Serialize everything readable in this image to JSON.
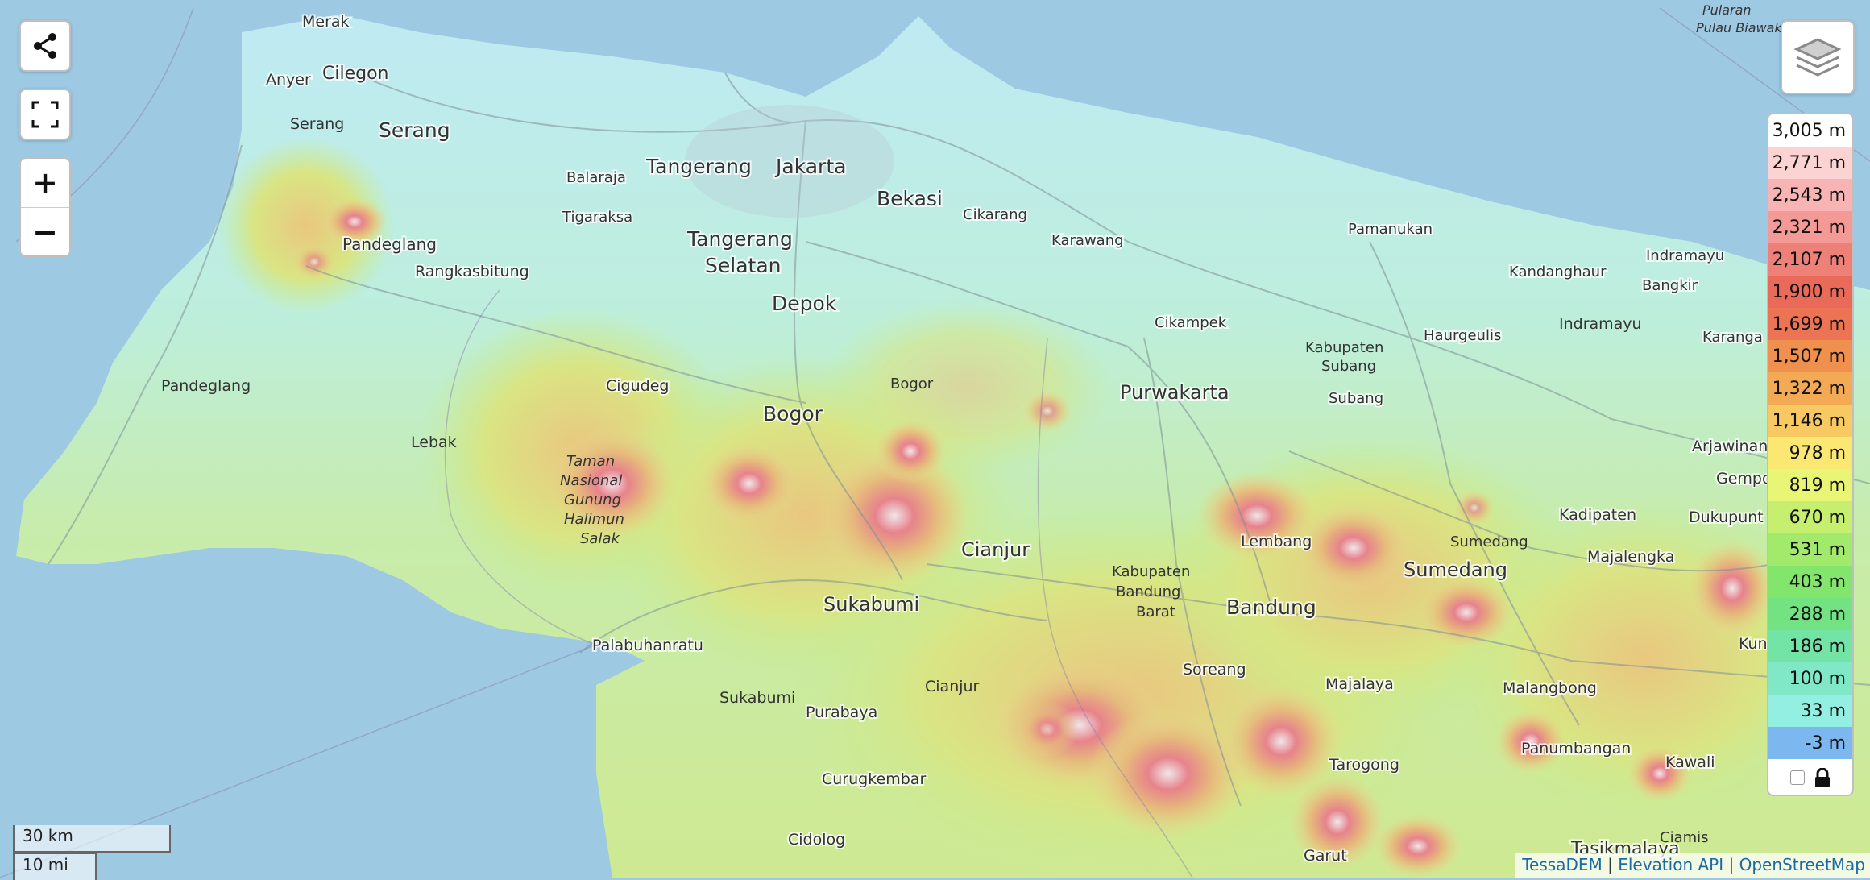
{
  "map": {
    "places": [
      {
        "name": "Merak",
        "size": "small"
      },
      {
        "name": "Cilegon",
        "size": "medium"
      },
      {
        "name": "Anyer",
        "size": "small"
      },
      {
        "name": "Serang",
        "size": "large"
      },
      {
        "name": "Serang",
        "size": "region"
      },
      {
        "name": "Pandeglang",
        "size": "medium"
      },
      {
        "name": "Rangkasbitung",
        "size": "medium"
      },
      {
        "name": "Pandeglang",
        "size": "region"
      },
      {
        "name": "Lebak",
        "size": "region"
      },
      {
        "name": "Balaraja",
        "size": "small"
      },
      {
        "name": "Tigaraksa",
        "size": "small"
      },
      {
        "name": "Tangerang",
        "size": "large"
      },
      {
        "name": "Jakarta",
        "size": "large"
      },
      {
        "name": "Bekasi",
        "size": "large"
      },
      {
        "name": "Tangerang",
        "size": "large"
      },
      {
        "name": "Selatan",
        "size": "large"
      },
      {
        "name": "Depok",
        "size": "large"
      },
      {
        "name": "Cikarang",
        "size": "small"
      },
      {
        "name": "Karawang",
        "size": "small"
      },
      {
        "name": "Pamanukan",
        "size": "small"
      },
      {
        "name": "Kandanghaur",
        "size": "small"
      },
      {
        "name": "Indramayu",
        "size": "small"
      },
      {
        "name": "Bangkir",
        "size": "small"
      },
      {
        "name": "Indramayu",
        "size": "region"
      },
      {
        "name": "Karanga",
        "size": "small"
      },
      {
        "name": "Haurgeulis",
        "size": "small"
      },
      {
        "name": "Cikampek",
        "size": "small"
      },
      {
        "name": "Kabupaten",
        "size": "region"
      },
      {
        "name": "Subang",
        "size": "region"
      },
      {
        "name": "Subang",
        "size": "small"
      },
      {
        "name": "Purwakarta",
        "size": "large"
      },
      {
        "name": "Cigudeg",
        "size": "small"
      },
      {
        "name": "Bogor",
        "size": "region"
      },
      {
        "name": "Bogor",
        "size": "large"
      },
      {
        "name": "Taman",
        "size": "park"
      },
      {
        "name": "Nasional",
        "size": "park"
      },
      {
        "name": "Gunung",
        "size": "park"
      },
      {
        "name": "Halimun",
        "size": "park"
      },
      {
        "name": "Salak",
        "size": "park"
      },
      {
        "name": "Cianjur",
        "size": "large"
      },
      {
        "name": "Sukabumi",
        "size": "large"
      },
      {
        "name": "Palabuhanratu",
        "size": "small"
      },
      {
        "name": "Lembang",
        "size": "small"
      },
      {
        "name": "Kabupaten",
        "size": "region"
      },
      {
        "name": "Bandung",
        "size": "region"
      },
      {
        "name": "Barat",
        "size": "region"
      },
      {
        "name": "Bandung",
        "size": "large"
      },
      {
        "name": "Sumedang",
        "size": "large"
      },
      {
        "name": "Sumedang",
        "size": "region"
      },
      {
        "name": "Kadipaten",
        "size": "small"
      },
      {
        "name": "Dukupunt",
        "size": "small"
      },
      {
        "name": "Majalengka",
        "size": "small"
      },
      {
        "name": "Arjawinang",
        "size": "small"
      },
      {
        "name": "Gempo",
        "size": "small"
      },
      {
        "name": "Kun",
        "size": "small"
      },
      {
        "name": "Soreang",
        "size": "small"
      },
      {
        "name": "Majalaya",
        "size": "small"
      },
      {
        "name": "Malangbong",
        "size": "small"
      },
      {
        "name": "Sukabumi",
        "size": "region"
      },
      {
        "name": "Cianjur",
        "size": "region"
      },
      {
        "name": "Purabaya",
        "size": "small"
      },
      {
        "name": "Curugkembar",
        "size": "small"
      },
      {
        "name": "Cidolog",
        "size": "small"
      },
      {
        "name": "Tarogong",
        "size": "small"
      },
      {
        "name": "Panumbangan",
        "size": "small"
      },
      {
        "name": "Kawali",
        "size": "small"
      },
      {
        "name": "Ciamis",
        "size": "region"
      },
      {
        "name": "Garut",
        "size": "small"
      },
      {
        "name": "Tasikmalaya",
        "size": "medium"
      },
      {
        "name": "Pularan",
        "size": "island"
      },
      {
        "name": "Pulau Biawak",
        "size": "island"
      }
    ]
  },
  "controls": {
    "share_icon": "share-icon",
    "fullscreen_icon": "fullscreen-icon",
    "zoom_in": "+",
    "zoom_out": "−",
    "layers_icon": "layers-icon"
  },
  "legend": {
    "items": [
      {
        "label": "3,005 m",
        "color": "#ffffff"
      },
      {
        "label": "2,771 m",
        "color": "#fbd3d3"
      },
      {
        "label": "2,543 m",
        "color": "#f8b4b4"
      },
      {
        "label": "2,321 m",
        "color": "#f39a96"
      },
      {
        "label": "2,107 m",
        "color": "#ee8177"
      },
      {
        "label": "1,900 m",
        "color": "#ea6a5a"
      },
      {
        "label": "1,699 m",
        "color": "#ec7353"
      },
      {
        "label": "1,507 m",
        "color": "#f0904f"
      },
      {
        "label": "1,322 m",
        "color": "#f4aa55"
      },
      {
        "label": "1,146 m",
        "color": "#f8c863"
      },
      {
        "label": "978 m",
        "color": "#fbe873"
      },
      {
        "label": "819 m",
        "color": "#e9f575"
      },
      {
        "label": "670 m",
        "color": "#c6ef70"
      },
      {
        "label": "531 m",
        "color": "#a2ea6c"
      },
      {
        "label": "403 m",
        "color": "#83e66c"
      },
      {
        "label": "288 m",
        "color": "#72e283"
      },
      {
        "label": "186 m",
        "color": "#73e3a6"
      },
      {
        "label": "100 m",
        "color": "#80e8c6"
      },
      {
        "label": "33 m",
        "color": "#93efe2"
      },
      {
        "label": "-3 m",
        "color": "#7db7f0"
      }
    ],
    "lock_icon": "lock-icon"
  },
  "scale": {
    "metric": "30 km",
    "imperial": "10 mi"
  },
  "attribution": {
    "items": [
      "TessaDEM",
      "Elevation API",
      "OpenStreetMap"
    ]
  }
}
